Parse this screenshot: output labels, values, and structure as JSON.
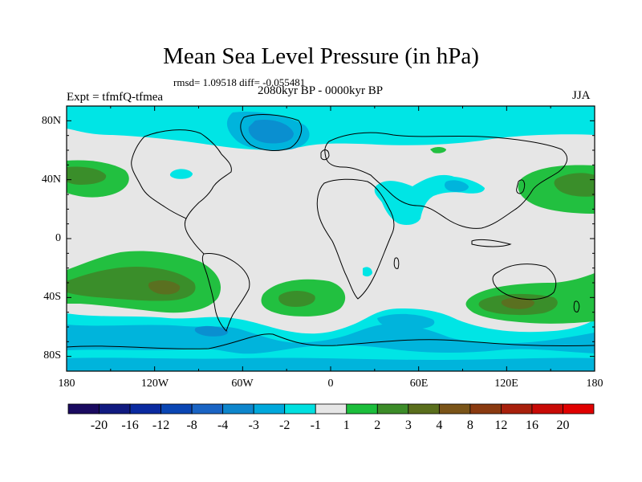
{
  "title": "Mean Sea Level Pressure (in hPa)",
  "stats": "rmsd= 1.09518 diff= -0.055481",
  "experiment": "Expt = tfmfQ-tfmea",
  "period": "2080kyr BP - 0000kyr BP",
  "season": "JJA",
  "map": {
    "lat_labels": [
      "80N",
      "40N",
      "0",
      "40S",
      "80S"
    ],
    "lon_labels": [
      "180",
      "120W",
      "60W",
      "0",
      "60E",
      "120E",
      "180"
    ],
    "colors": {
      "neutral": "#e6e6e6",
      "neg1": "#00e5e5",
      "neg2": "#00b4dc",
      "neg3": "#0a8fd0",
      "neg4": "#1a6ec0",
      "pos1": "#22c040",
      "pos2": "#3a8e2a",
      "pos3": "#5a7020",
      "coast": "#000000"
    }
  },
  "colorbar": {
    "colors": [
      "#1a0a60",
      "#101a80",
      "#0a2aa0",
      "#0a46b4",
      "#1a64c4",
      "#0e86cc",
      "#00a8dc",
      "#00e0e0",
      "#e6e6e6",
      "#1cbe3c",
      "#3c8c28",
      "#5a6e1c",
      "#7a5418",
      "#8a3a10",
      "#a8200c",
      "#c80a06",
      "#e00000"
    ],
    "labels": [
      "-20",
      "-16",
      "-12",
      "-8",
      "-4",
      "-3",
      "-2",
      "-1",
      "1",
      "2",
      "3",
      "4",
      "8",
      "12",
      "16",
      "20"
    ]
  }
}
